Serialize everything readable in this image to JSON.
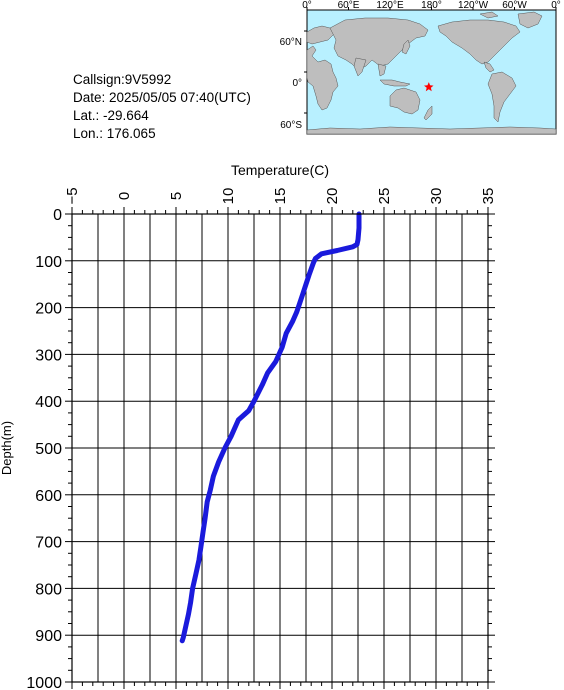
{
  "info": {
    "callsign": "Callsign:9V5992",
    "date": "Date:  2025/05/05 07:40(UTC)",
    "lat": "Lat.:  -29.664",
    "lon": "Lon.:  176.065"
  },
  "map": {
    "lon_ticks": [
      "0°",
      "60°E",
      "120°E",
      "180°",
      "120°W",
      "60°W",
      "0°"
    ],
    "lat_ticks": [
      "60°N",
      "0°",
      "60°S"
    ],
    "ocean_color": "#b8f0ff",
    "land_color": "#bebebe",
    "marker": {
      "lat": -29.664,
      "lon": 176.065,
      "color": "#ff0000"
    }
  },
  "chart_data": {
    "type": "line",
    "xlabel": "Temperature(C)",
    "ylabel": "Depth(m)",
    "xlim": [
      -5,
      35
    ],
    "ylim": [
      1000,
      0
    ],
    "x_ticks": [
      -5,
      0,
      5,
      10,
      15,
      20,
      25,
      30,
      35
    ],
    "y_ticks": [
      0,
      100,
      200,
      300,
      400,
      500,
      600,
      700,
      800,
      900,
      1000
    ],
    "grid": true,
    "line_color": "#1a1adc",
    "series": [
      {
        "x": [
          22.6,
          22.6,
          22.5,
          22.4,
          22.0,
          20.5,
          19.0,
          18.4,
          18.2,
          17.8,
          17.5,
          17.2,
          16.9,
          16.6,
          16.2,
          15.6,
          15.2,
          14.6,
          13.8,
          13.3,
          12.5,
          12.0,
          11.0,
          10.3,
          9.7,
          9.1,
          8.6,
          8.3,
          8.0,
          7.8,
          7.6,
          7.4,
          7.2,
          6.9,
          6.6,
          6.4,
          6.2,
          6.0,
          5.8,
          5.7,
          5.6
        ],
        "y": [
          0,
          30,
          55,
          65,
          70,
          78,
          85,
          95,
          105,
          130,
          150,
          170,
          190,
          210,
          230,
          255,
          285,
          315,
          340,
          365,
          400,
          420,
          440,
          475,
          500,
          530,
          560,
          590,
          615,
          650,
          680,
          710,
          740,
          770,
          800,
          830,
          855,
          875,
          895,
          905,
          912
        ]
      }
    ]
  }
}
